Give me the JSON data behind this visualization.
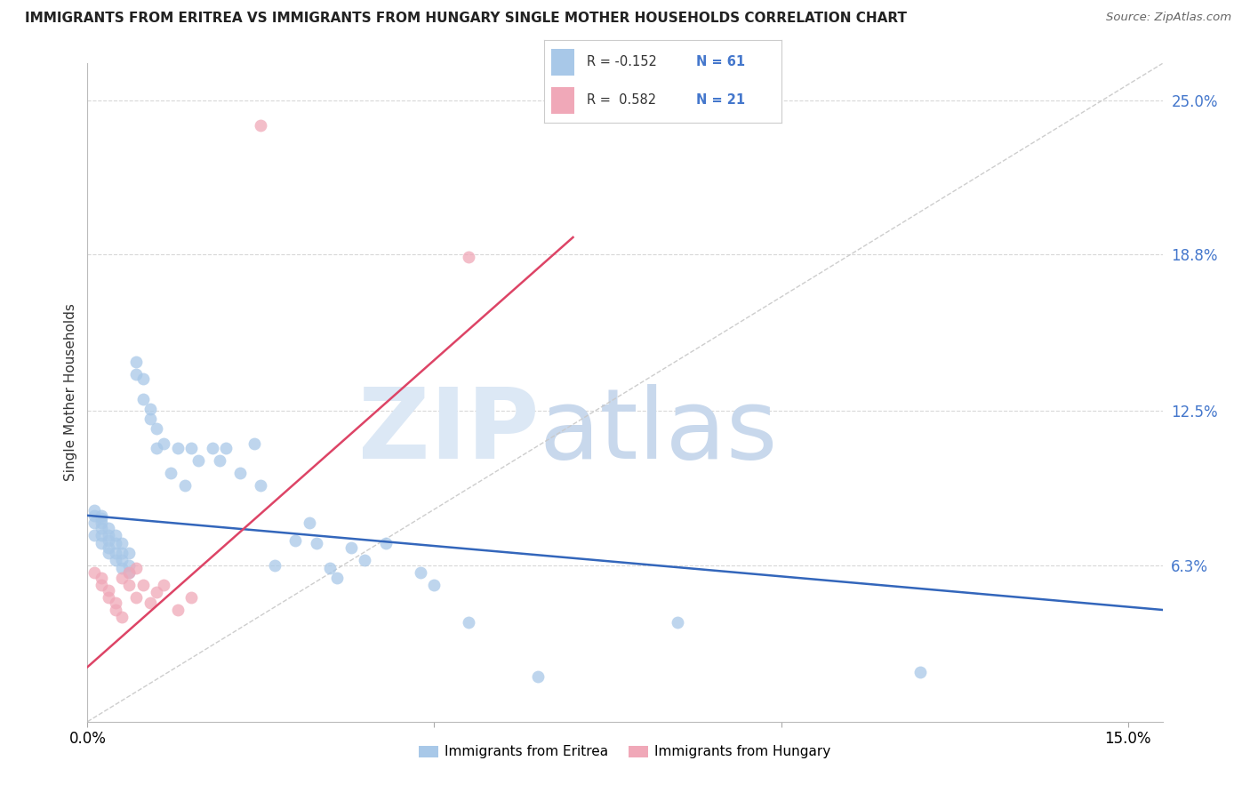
{
  "title": "IMMIGRANTS FROM ERITREA VS IMMIGRANTS FROM HUNGARY SINGLE MOTHER HOUSEHOLDS CORRELATION CHART",
  "source": "Source: ZipAtlas.com",
  "ylabel_label": "Single Mother Households",
  "ytick_vals": [
    0.0,
    0.063,
    0.125,
    0.188,
    0.25
  ],
  "ytick_labels": [
    "",
    "6.3%",
    "12.5%",
    "18.8%",
    "25.0%"
  ],
  "xtick_vals": [
    0.0,
    0.05,
    0.1,
    0.15
  ],
  "xtick_labels": [
    "0.0%",
    "",
    "",
    "15.0%"
  ],
  "xlim": [
    0.0,
    0.155
  ],
  "ylim": [
    0.0,
    0.265
  ],
  "blue_color": "#a8c8e8",
  "pink_color": "#f0a8b8",
  "blue_line_color": "#3366bb",
  "pink_line_color": "#dd4466",
  "diag_color": "#c8c8c8",
  "grid_color": "#d8d8d8",
  "legend_blue_r": "R = -0.152",
  "legend_blue_n": "N = 61",
  "legend_pink_r": "R =  0.582",
  "legend_pink_n": "N = 21",
  "legend_blue_label": "Immigrants from Eritrea",
  "legend_pink_label": "Immigrants from Hungary",
  "blue_line_x0": 0.0,
  "blue_line_x1": 0.155,
  "blue_line_y0": 0.083,
  "blue_line_y1": 0.045,
  "pink_line_x0": 0.0,
  "pink_line_x1": 0.07,
  "pink_line_y0": 0.022,
  "pink_line_y1": 0.195,
  "blue_scatter_x": [
    0.001,
    0.001,
    0.001,
    0.001,
    0.002,
    0.002,
    0.002,
    0.002,
    0.002,
    0.002,
    0.003,
    0.003,
    0.003,
    0.003,
    0.003,
    0.004,
    0.004,
    0.004,
    0.004,
    0.005,
    0.005,
    0.005,
    0.005,
    0.006,
    0.006,
    0.006,
    0.007,
    0.007,
    0.008,
    0.008,
    0.009,
    0.009,
    0.01,
    0.01,
    0.011,
    0.012,
    0.013,
    0.014,
    0.015,
    0.016,
    0.018,
    0.019,
    0.02,
    0.022,
    0.024,
    0.025,
    0.027,
    0.03,
    0.032,
    0.033,
    0.035,
    0.036,
    0.038,
    0.04,
    0.043,
    0.048,
    0.05,
    0.055,
    0.065,
    0.085,
    0.12
  ],
  "blue_scatter_y": [
    0.075,
    0.08,
    0.083,
    0.085,
    0.072,
    0.075,
    0.078,
    0.08,
    0.082,
    0.083,
    0.068,
    0.07,
    0.073,
    0.075,
    0.078,
    0.065,
    0.068,
    0.072,
    0.075,
    0.062,
    0.065,
    0.068,
    0.072,
    0.06,
    0.063,
    0.068,
    0.145,
    0.14,
    0.13,
    0.138,
    0.122,
    0.126,
    0.118,
    0.11,
    0.112,
    0.1,
    0.11,
    0.095,
    0.11,
    0.105,
    0.11,
    0.105,
    0.11,
    0.1,
    0.112,
    0.095,
    0.063,
    0.073,
    0.08,
    0.072,
    0.062,
    0.058,
    0.07,
    0.065,
    0.072,
    0.06,
    0.055,
    0.04,
    0.018,
    0.04,
    0.02
  ],
  "pink_scatter_x": [
    0.001,
    0.002,
    0.002,
    0.003,
    0.003,
    0.004,
    0.004,
    0.005,
    0.005,
    0.006,
    0.006,
    0.007,
    0.007,
    0.008,
    0.009,
    0.01,
    0.011,
    0.013,
    0.015,
    0.055,
    0.025
  ],
  "pink_scatter_y": [
    0.06,
    0.055,
    0.058,
    0.05,
    0.053,
    0.045,
    0.048,
    0.042,
    0.058,
    0.055,
    0.06,
    0.05,
    0.062,
    0.055,
    0.048,
    0.052,
    0.055,
    0.045,
    0.05,
    0.187,
    0.24
  ]
}
